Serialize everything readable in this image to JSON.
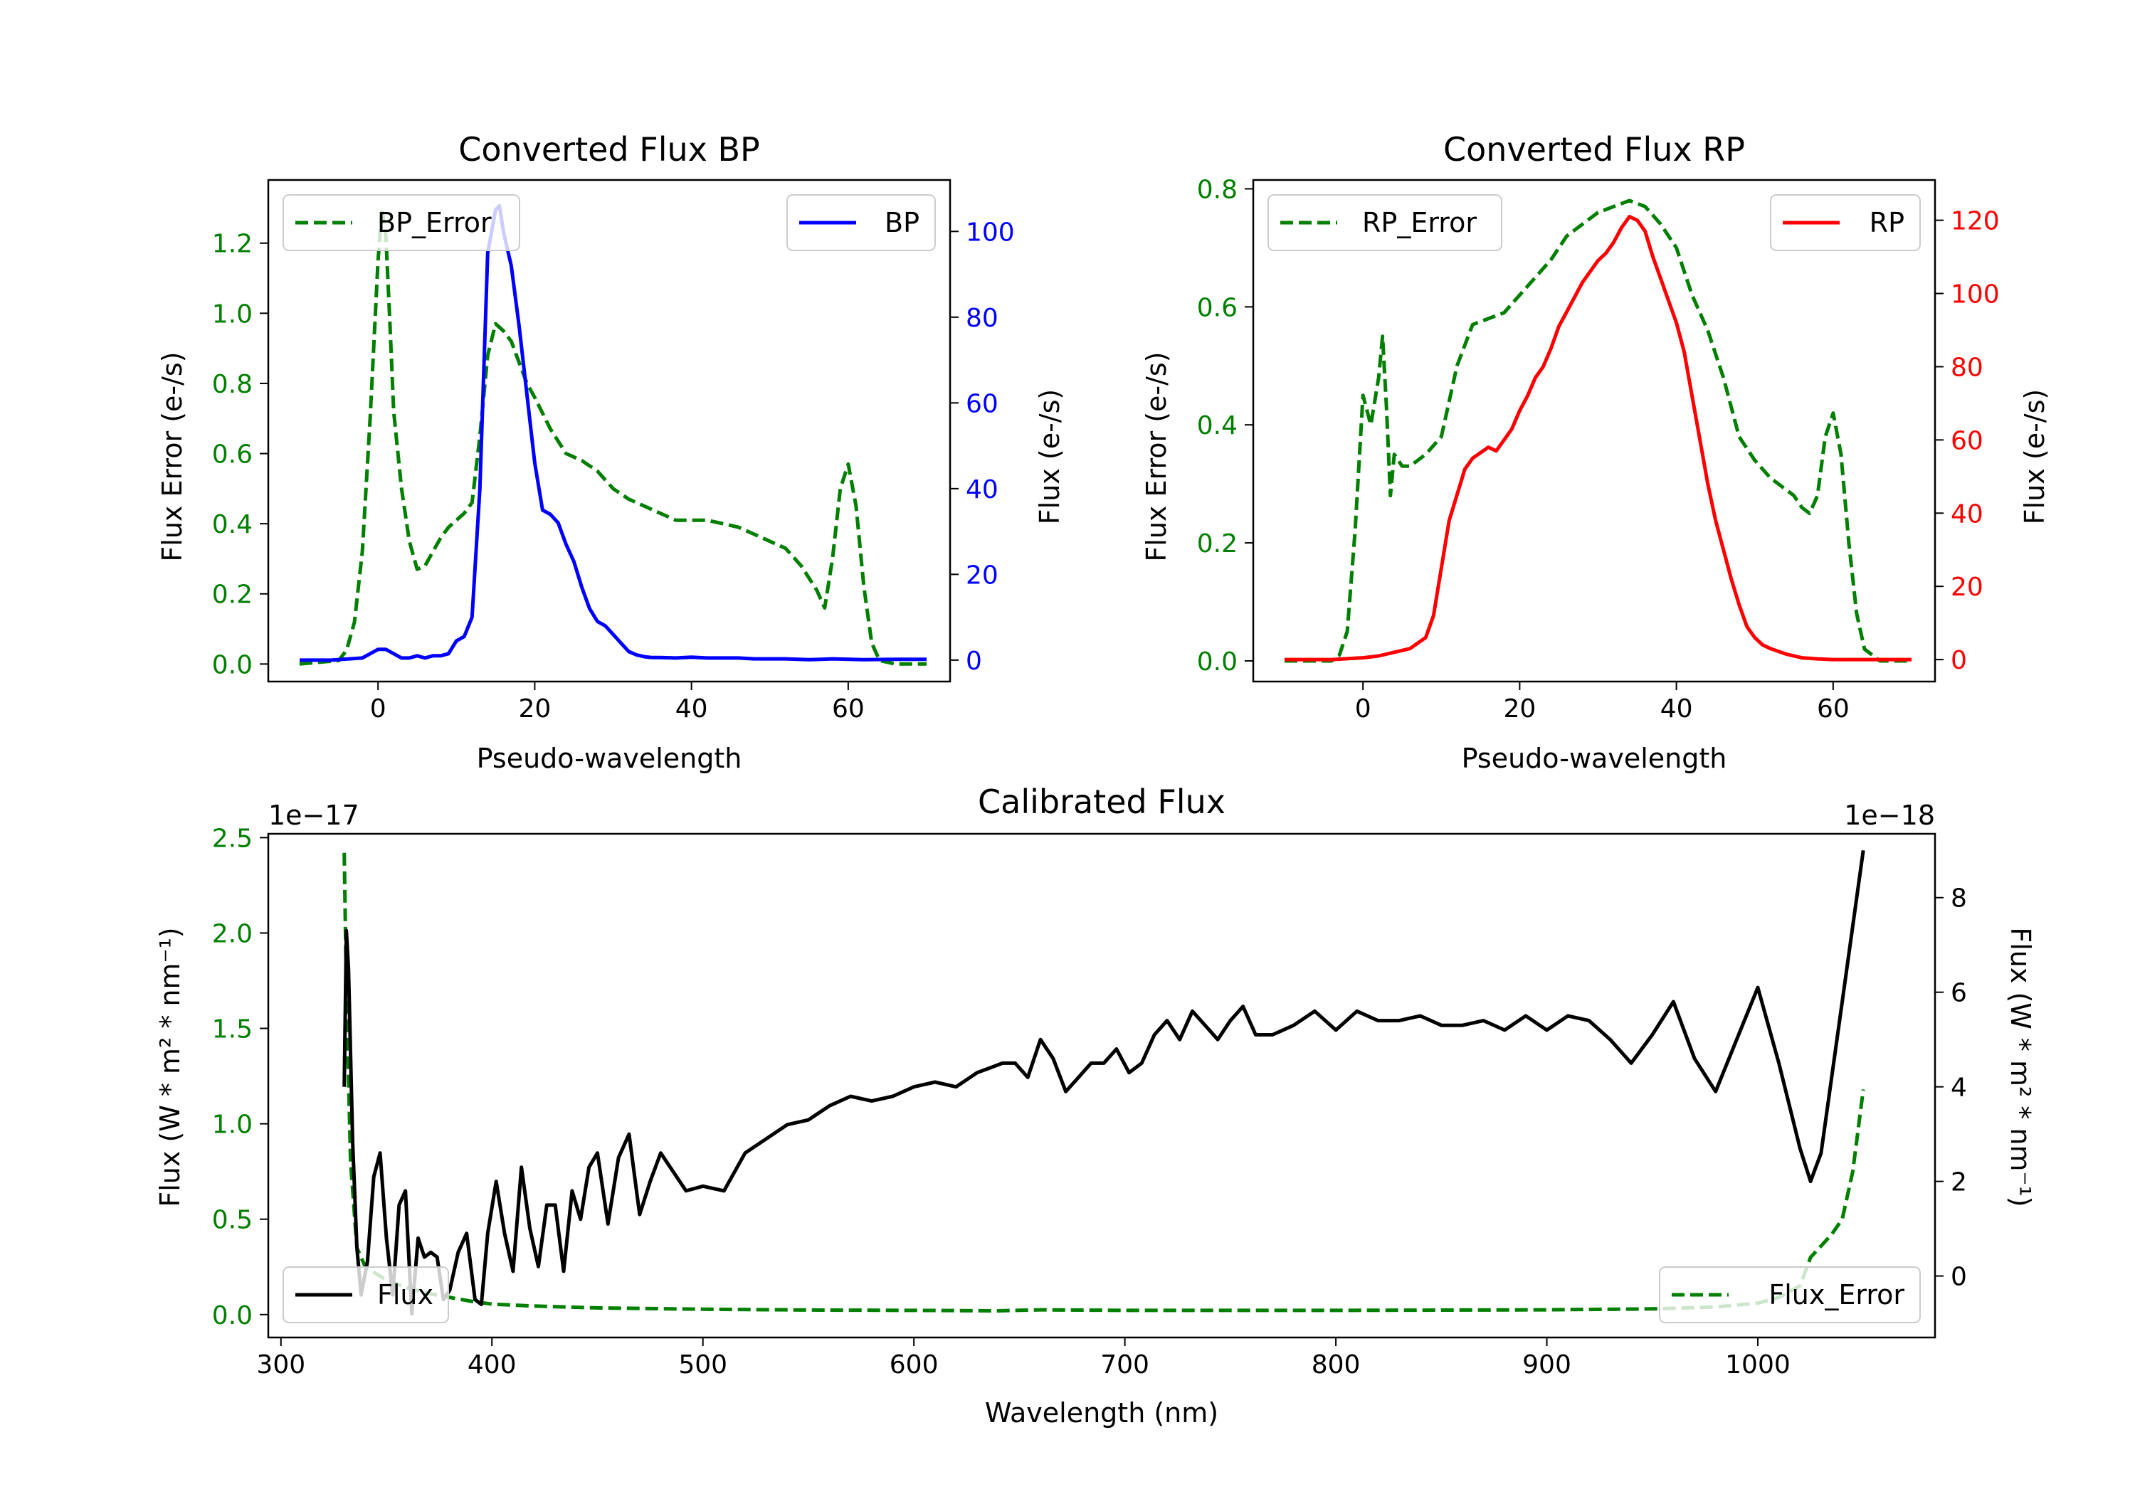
{
  "colors": {
    "green": "#007f00",
    "blue": "#0000ff",
    "red": "#ff0000",
    "black": "#000000"
  },
  "chart_data": [
    {
      "type": "line",
      "title": "Converted Flux BP",
      "xlabel": "Pseudo-wavelength",
      "ylabel_left": "Flux Error (e-/s)",
      "ylabel_right": "Flux (e-/s)",
      "xlim": [
        -14,
        73
      ],
      "ylim_left": [
        -0.05,
        1.38
      ],
      "ylim_right": [
        -5,
        112
      ],
      "xticks": [
        "0",
        "20",
        "40",
        "60"
      ],
      "xtick_values": [
        0,
        20,
        40,
        60
      ],
      "yticks_left": [
        "0.0",
        "0.2",
        "0.4",
        "0.6",
        "0.8",
        "1.0",
        "1.2"
      ],
      "ytick_values_left": [
        0,
        0.2,
        0.4,
        0.6,
        0.8,
        1.0,
        1.2
      ],
      "yticks_right": [
        "0",
        "20",
        "40",
        "60",
        "80",
        "100"
      ],
      "ytick_values_right": [
        0,
        20,
        40,
        60,
        80,
        100
      ],
      "series": [
        {
          "name": "BP_Error",
          "axis": "left",
          "style": "dashed",
          "color": "#007f00",
          "x": [
            -10,
            -5,
            -4,
            -3,
            -2,
            -1,
            0,
            0.5,
            1,
            1.5,
            2,
            3,
            4,
            5,
            6,
            7,
            8,
            9,
            10,
            11,
            12,
            13,
            14,
            15,
            16,
            17,
            18,
            19,
            20,
            22,
            24,
            26,
            28,
            30,
            32,
            34,
            36,
            38,
            40,
            42,
            44,
            46,
            48,
            50,
            52,
            54,
            56,
            57,
            58,
            59,
            60,
            61,
            62,
            63,
            64,
            66,
            68,
            70
          ],
          "y": [
            0.0,
            0.01,
            0.04,
            0.12,
            0.32,
            0.7,
            1.15,
            1.3,
            1.22,
            0.98,
            0.72,
            0.5,
            0.35,
            0.27,
            0.28,
            0.32,
            0.36,
            0.39,
            0.41,
            0.43,
            0.46,
            0.65,
            0.88,
            0.97,
            0.95,
            0.92,
            0.86,
            0.8,
            0.76,
            0.67,
            0.6,
            0.58,
            0.55,
            0.5,
            0.47,
            0.45,
            0.43,
            0.41,
            0.41,
            0.41,
            0.4,
            0.39,
            0.37,
            0.35,
            0.33,
            0.28,
            0.21,
            0.16,
            0.3,
            0.5,
            0.57,
            0.45,
            0.22,
            0.06,
            0.01,
            0.0,
            0.0,
            0.0
          ]
        },
        {
          "name": "BP",
          "axis": "right",
          "style": "solid",
          "color": "#0000ff",
          "x": [
            -10,
            -6,
            -2,
            0,
            1,
            2,
            3,
            4,
            5,
            6,
            7,
            8,
            9,
            10,
            11,
            12,
            13,
            14,
            15,
            15.5,
            16,
            17,
            18,
            19,
            20,
            21,
            22,
            23,
            24,
            25,
            26,
            27,
            28,
            29,
            30,
            31,
            32,
            33,
            34,
            35,
            36,
            38,
            40,
            42,
            44,
            46,
            48,
            50,
            52,
            55,
            58,
            62,
            66,
            70
          ],
          "y": [
            0,
            0,
            0.5,
            2.5,
            2.5,
            1.5,
            0.5,
            0.5,
            1.0,
            0.5,
            1.0,
            1.0,
            1.5,
            4.5,
            5.5,
            10,
            40,
            95,
            105,
            106,
            100,
            92,
            78,
            62,
            46,
            35,
            34,
            32,
            27,
            23,
            17,
            12,
            9,
            8,
            6,
            4,
            2,
            1.2,
            0.8,
            0.6,
            0.6,
            0.5,
            0.7,
            0.5,
            0.5,
            0.5,
            0.3,
            0.3,
            0.3,
            0.1,
            0.3,
            0.1,
            0.2,
            0.2
          ]
        }
      ],
      "legend": [
        {
          "label": "BP_Error",
          "position": "upper-left"
        },
        {
          "label": "BP",
          "position": "upper-right"
        }
      ]
    },
    {
      "type": "line",
      "title": "Converted Flux RP",
      "xlabel": "Pseudo-wavelength",
      "ylabel_left": "Flux Error (e-/s)",
      "ylabel_right": "Flux (e-/s)",
      "xlim": [
        -14,
        73
      ],
      "ylim_left": [
        -0.035,
        0.815
      ],
      "ylim_right": [
        -6,
        131
      ],
      "xticks": [
        "0",
        "20",
        "40",
        "60"
      ],
      "xtick_values": [
        0,
        20,
        40,
        60
      ],
      "yticks_left": [
        "0.0",
        "0.2",
        "0.4",
        "0.6",
        "0.8"
      ],
      "ytick_values_left": [
        0,
        0.2,
        0.4,
        0.6,
        0.8
      ],
      "yticks_right": [
        "0",
        "20",
        "40",
        "60",
        "80",
        "100",
        "120"
      ],
      "ytick_values_right": [
        0,
        20,
        40,
        60,
        80,
        100,
        120
      ],
      "series": [
        {
          "name": "RP_Error",
          "axis": "left",
          "style": "dashed",
          "color": "#007f00",
          "x": [
            -10,
            -4,
            -3,
            -2,
            -1,
            0,
            1,
            2,
            2.5,
            3,
            3.5,
            4,
            5,
            6,
            8,
            10,
            12,
            14,
            16,
            18,
            20,
            22,
            24,
            26,
            28,
            30,
            32,
            34,
            36,
            38,
            40,
            42,
            44,
            46,
            48,
            50,
            52,
            54,
            55,
            56,
            57,
            58,
            59,
            60,
            61,
            62,
            63,
            64,
            66,
            70
          ],
          "y": [
            0.0,
            0.0,
            0.01,
            0.05,
            0.22,
            0.45,
            0.4,
            0.48,
            0.55,
            0.43,
            0.28,
            0.35,
            0.33,
            0.33,
            0.35,
            0.38,
            0.5,
            0.57,
            0.58,
            0.59,
            0.62,
            0.65,
            0.68,
            0.72,
            0.74,
            0.76,
            0.77,
            0.78,
            0.77,
            0.74,
            0.7,
            0.62,
            0.56,
            0.48,
            0.38,
            0.34,
            0.31,
            0.29,
            0.28,
            0.26,
            0.25,
            0.28,
            0.38,
            0.42,
            0.35,
            0.2,
            0.08,
            0.02,
            0.0,
            0.0
          ]
        },
        {
          "name": "RP",
          "axis": "right",
          "style": "solid",
          "color": "#ff0000",
          "x": [
            -10,
            -4,
            0,
            2,
            4,
            6,
            8,
            9,
            10,
            11,
            12,
            13,
            14,
            16,
            17,
            18,
            19,
            20,
            21,
            22,
            23,
            24,
            25,
            26,
            27,
            28,
            29,
            30,
            31,
            32,
            33,
            34,
            35,
            36,
            37,
            38,
            39,
            40,
            41,
            42,
            43,
            44,
            45,
            46,
            47,
            48,
            49,
            50,
            51,
            52,
            54,
            56,
            58,
            60,
            64,
            70
          ],
          "y": [
            0,
            0,
            0.5,
            1.0,
            2.0,
            3.0,
            6.0,
            12,
            25,
            38,
            45,
            52,
            55,
            58,
            57,
            60,
            63,
            68,
            72,
            77,
            80,
            85,
            91,
            95,
            99,
            103,
            106,
            109,
            111,
            114,
            118,
            121,
            120,
            117,
            110,
            104,
            98,
            92,
            84,
            72,
            60,
            48,
            38,
            30,
            22,
            15,
            9,
            6,
            4,
            3,
            1.5,
            0.5,
            0.2,
            0,
            0,
            0
          ]
        }
      ],
      "legend": [
        {
          "label": "RP_Error",
          "position": "upper-left"
        },
        {
          "label": "RP",
          "position": "upper-right"
        }
      ]
    },
    {
      "type": "line",
      "title": "Calibrated Flux",
      "xlabel": "Wavelength (nm)",
      "ylabel_left": "Flux (W * m² * nm⁻¹)",
      "ylabel_right": "Flux (W * m² * nm⁻¹)",
      "offset_left": "1e−17",
      "offset_right": "1e−18",
      "xlim": [
        294,
        1084
      ],
      "ylim_left": [
        -0.12,
        2.52
      ],
      "ylim_right": [
        -1.3,
        9.35
      ],
      "xticks": [
        "300",
        "400",
        "500",
        "600",
        "700",
        "800",
        "900",
        "1000"
      ],
      "xtick_values": [
        300,
        400,
        500,
        600,
        700,
        800,
        900,
        1000
      ],
      "yticks_left": [
        "0.0",
        "0.5",
        "1.0",
        "1.5",
        "2.0",
        "2.5"
      ],
      "ytick_values_left": [
        0,
        0.5,
        1.0,
        1.5,
        2.0,
        2.5
      ],
      "yticks_right": [
        "0",
        "2",
        "4",
        "6",
        "8"
      ],
      "ytick_values_right": [
        0,
        2,
        4,
        6,
        8
      ],
      "series": [
        {
          "name": "Flux_Error",
          "axis": "left",
          "style": "dashed",
          "color": "#007f00",
          "x": [
            330,
            331,
            333,
            336,
            340,
            350,
            360,
            370,
            380,
            390,
            400,
            420,
            450,
            500,
            550,
            600,
            640,
            660,
            700,
            800,
            900,
            950,
            980,
            1000,
            1010,
            1020,
            1025,
            1030,
            1035,
            1040,
            1045,
            1050
          ],
          "y": [
            2.42,
            1.7,
            0.8,
            0.35,
            0.25,
            0.18,
            0.14,
            0.11,
            0.09,
            0.07,
            0.055,
            0.045,
            0.035,
            0.028,
            0.024,
            0.022,
            0.02,
            0.025,
            0.022,
            0.022,
            0.025,
            0.03,
            0.04,
            0.06,
            0.09,
            0.15,
            0.3,
            0.36,
            0.42,
            0.5,
            0.75,
            1.18
          ]
        },
        {
          "name": "Flux",
          "axis": "right",
          "style": "solid",
          "color": "#000000",
          "x": [
            330,
            331,
            332,
            334,
            336,
            338,
            341,
            344,
            347,
            350,
            353,
            356,
            359,
            362,
            365,
            368,
            371,
            374,
            377,
            380,
            384,
            388,
            392,
            395,
            398,
            402,
            406,
            410,
            414,
            418,
            422,
            426,
            430,
            434,
            438,
            442,
            446,
            450,
            455,
            460,
            465,
            470,
            475,
            480,
            486,
            492,
            500,
            510,
            520,
            530,
            540,
            550,
            560,
            570,
            580,
            590,
            600,
            610,
            620,
            630,
            636,
            642,
            648,
            654,
            660,
            666,
            672,
            678,
            684,
            690,
            696,
            702,
            708,
            714,
            720,
            726,
            732,
            738,
            744,
            750,
            756,
            762,
            770,
            780,
            790,
            800,
            810,
            820,
            830,
            840,
            850,
            860,
            870,
            880,
            890,
            900,
            910,
            920,
            930,
            940,
            950,
            960,
            970,
            980,
            990,
            1000,
            1010,
            1020,
            1025,
            1030,
            1040,
            1050
          ],
          "y": [
            4.0,
            7.3,
            6.5,
            2.8,
            0.6,
            -0.4,
            0.3,
            2.1,
            2.6,
            0.8,
            -0.4,
            1.5,
            1.8,
            -0.8,
            0.8,
            0.4,
            0.5,
            0.4,
            -0.5,
            -0.3,
            0.5,
            0.9,
            -0.5,
            -0.6,
            0.9,
            2.0,
            0.9,
            0.1,
            2.3,
            1.0,
            0.2,
            1.5,
            1.5,
            0.1,
            1.8,
            1.2,
            2.3,
            2.6,
            1.1,
            2.5,
            3.0,
            1.3,
            2.0,
            2.6,
            2.2,
            1.8,
            1.9,
            1.8,
            2.6,
            2.9,
            3.2,
            3.3,
            3.6,
            3.8,
            3.7,
            3.8,
            4.0,
            4.1,
            4.0,
            4.3,
            4.4,
            4.5,
            4.5,
            4.2,
            5.0,
            4.6,
            3.9,
            4.2,
            4.5,
            4.5,
            4.8,
            4.3,
            4.5,
            5.1,
            5.4,
            5.0,
            5.6,
            5.3,
            5.0,
            5.4,
            5.7,
            5.1,
            5.1,
            5.3,
            5.6,
            5.2,
            5.6,
            5.4,
            5.4,
            5.5,
            5.3,
            5.3,
            5.4,
            5.2,
            5.5,
            5.2,
            5.5,
            5.4,
            5.0,
            4.5,
            5.1,
            5.8,
            4.6,
            3.9,
            5.0,
            6.1,
            4.5,
            2.7,
            2.0,
            2.6,
            5.8,
            9.0
          ]
        }
      ],
      "legend": [
        {
          "label": "Flux",
          "position": "lower-left"
        },
        {
          "label": "Flux_Error",
          "position": "lower-right"
        }
      ]
    }
  ]
}
